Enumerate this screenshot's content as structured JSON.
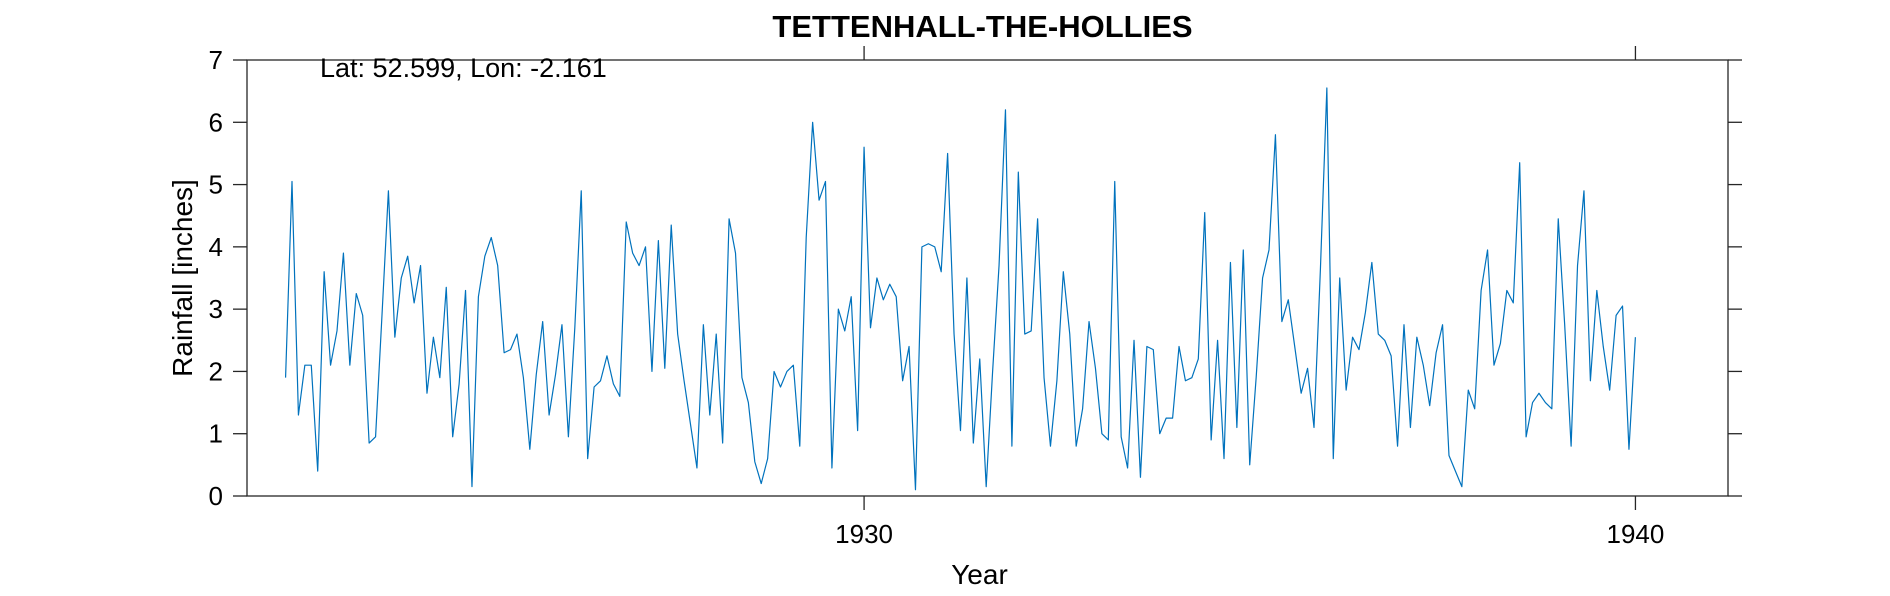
{
  "chart_data": {
    "type": "line",
    "title": "TETTENHALL-THE-HOLLIES",
    "xlabel": "Year",
    "ylabel": "Rainfall [inches]",
    "annotation": "Lat: 52.599, Lon: -2.161",
    "xlim": [
      1922.0,
      1941.2
    ],
    "ylim": [
      0,
      7
    ],
    "x_ticks": [
      1930,
      1940
    ],
    "x_tick_labels": [
      "1930",
      "1940"
    ],
    "y_ticks": [
      0,
      1,
      2,
      3,
      4,
      5,
      6,
      7
    ],
    "y_tick_labels": [
      "0",
      "1",
      "2",
      "3",
      "4",
      "5",
      "6",
      "7"
    ],
    "grid": false,
    "box": true,
    "x_start": 1922.5,
    "x_step": 0.08333,
    "series": [
      {
        "color": "#0072BD",
        "values": [
          1.9,
          5.05,
          1.3,
          2.1,
          2.1,
          0.4,
          3.6,
          2.1,
          2.65,
          3.9,
          2.1,
          3.25,
          2.9,
          0.85,
          0.95,
          2.9,
          4.9,
          2.55,
          3.5,
          3.85,
          3.1,
          3.7,
          1.65,
          2.55,
          1.9,
          3.35,
          0.95,
          1.8,
          3.3,
          0.15,
          3.2,
          3.85,
          4.15,
          3.7,
          2.3,
          2.35,
          2.6,
          1.9,
          0.75,
          1.95,
          2.8,
          1.3,
          1.95,
          2.75,
          0.95,
          2.7,
          4.9,
          0.6,
          1.75,
          1.85,
          2.25,
          1.8,
          1.6,
          4.4,
          3.9,
          3.7,
          4.0,
          2.0,
          4.1,
          2.05,
          4.35,
          2.6,
          1.85,
          1.15,
          0.45,
          2.75,
          1.3,
          2.6,
          0.85,
          4.45,
          3.9,
          1.9,
          1.5,
          0.55,
          0.2,
          0.6,
          2.0,
          1.75,
          2.0,
          2.1,
          0.8,
          4.15,
          6.0,
          4.75,
          5.05,
          0.45,
          3.0,
          2.65,
          3.2,
          1.05,
          5.6,
          2.7,
          3.5,
          3.15,
          3.4,
          3.2,
          1.85,
          2.4,
          0.1,
          4.0,
          4.05,
          4.0,
          3.6,
          5.5,
          2.6,
          1.05,
          3.5,
          0.85,
          2.2,
          0.15,
          2.0,
          3.7,
          6.2,
          0.8,
          5.2,
          2.6,
          2.65,
          4.45,
          1.9,
          0.8,
          1.85,
          3.6,
          2.6,
          0.8,
          1.4,
          2.8,
          2.05,
          1.0,
          0.9,
          5.05,
          0.95,
          0.45,
          2.5,
          0.3,
          2.4,
          2.35,
          1.0,
          1.25,
          1.25,
          2.4,
          1.85,
          1.9,
          2.2,
          4.55,
          0.9,
          2.5,
          0.6,
          3.75,
          1.1,
          3.95,
          0.5,
          1.9,
          3.5,
          3.95,
          5.8,
          2.8,
          3.15,
          2.4,
          1.65,
          2.05,
          1.1,
          3.65,
          6.55,
          0.6,
          3.5,
          1.7,
          2.55,
          2.35,
          2.95,
          3.75,
          2.6,
          2.5,
          2.25,
          0.8,
          2.75,
          1.1,
          2.55,
          2.1,
          1.45,
          2.3,
          2.75,
          0.65,
          0.4,
          0.15,
          1.7,
          1.4,
          3.3,
          3.95,
          2.1,
          2.45,
          3.3,
          3.1,
          5.35,
          0.95,
          1.5,
          1.65,
          1.5,
          1.4,
          4.45,
          2.75,
          0.8,
          3.7,
          4.9,
          1.85,
          3.3,
          2.4,
          1.7,
          2.9,
          3.05,
          0.75,
          2.55
        ]
      }
    ]
  }
}
